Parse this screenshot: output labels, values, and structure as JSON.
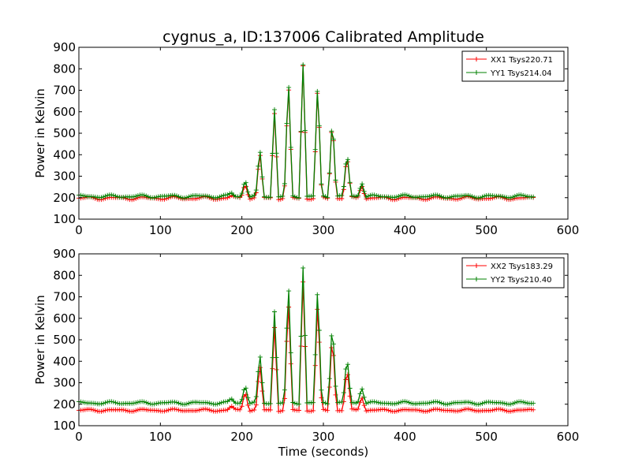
{
  "title": "cygnus_a, ID:137006 Calibrated Amplitude",
  "colors": {
    "xx": "#ff0000",
    "yy": "#008000"
  },
  "chart_data": [
    {
      "type": "line",
      "ylabel": "Power in Kelvin",
      "xlabel": "",
      "xlim": [
        0,
        600
      ],
      "ylim": [
        100,
        900
      ],
      "xticks": [
        0,
        100,
        200,
        300,
        400,
        500,
        600
      ],
      "yticks": [
        100,
        200,
        300,
        400,
        500,
        600,
        700,
        800,
        900
      ],
      "legend_position": "top-right",
      "series": [
        {
          "name": "XX1 Tsys220.71",
          "color": "#ff0000",
          "baseline": 198,
          "ripple": 10,
          "peaks": [
            [
              187,
              208
            ],
            [
              204,
              275
            ],
            [
              222,
              415
            ],
            [
              240,
              595
            ],
            [
              257,
              750
            ],
            [
              275,
              815
            ],
            [
              293,
              735
            ],
            [
              311,
              585
            ],
            [
              329,
              405
            ],
            [
              347,
              265
            ]
          ]
        },
        {
          "name": "YY1 Tsys214.04",
          "color": "#008000",
          "baseline": 206,
          "ripple": 10,
          "peaks": [
            [
              187,
              222
            ],
            [
              204,
              292
            ],
            [
              222,
              428
            ],
            [
              240,
              612
            ],
            [
              257,
              762
            ],
            [
              275,
              823
            ],
            [
              293,
              745
            ],
            [
              311,
              595
            ],
            [
              329,
              418
            ],
            [
              347,
              278
            ]
          ]
        }
      ]
    },
    {
      "type": "line",
      "ylabel": "Power in Kelvin",
      "xlabel": "Time (seconds)",
      "xlim": [
        0,
        600
      ],
      "ylim": [
        100,
        900
      ],
      "xticks": [
        0,
        100,
        200,
        300,
        400,
        500,
        600
      ],
      "yticks": [
        100,
        200,
        300,
        400,
        500,
        600,
        700,
        800,
        900
      ],
      "legend_position": "top-right",
      "series": [
        {
          "name": "XX2 Tsys183.29",
          "color": "#ff0000",
          "baseline": 172,
          "ripple": 8,
          "peaks": [
            [
              187,
              190
            ],
            [
              204,
              270
            ],
            [
              222,
              390
            ],
            [
              240,
              560
            ],
            [
              257,
              700
            ],
            [
              275,
              770
            ],
            [
              293,
              690
            ],
            [
              311,
              540
            ],
            [
              329,
              375
            ],
            [
              347,
              240
            ]
          ]
        },
        {
          "name": "YY2 Tsys210.40",
          "color": "#008000",
          "baseline": 206,
          "ripple": 9,
          "peaks": [
            [
              187,
              225
            ],
            [
              204,
              298
            ],
            [
              222,
              438
            ],
            [
              240,
              632
            ],
            [
              257,
              778
            ],
            [
              275,
              838
            ],
            [
              293,
              762
            ],
            [
              311,
              605
            ],
            [
              329,
              428
            ],
            [
              347,
              285
            ]
          ]
        }
      ]
    }
  ]
}
